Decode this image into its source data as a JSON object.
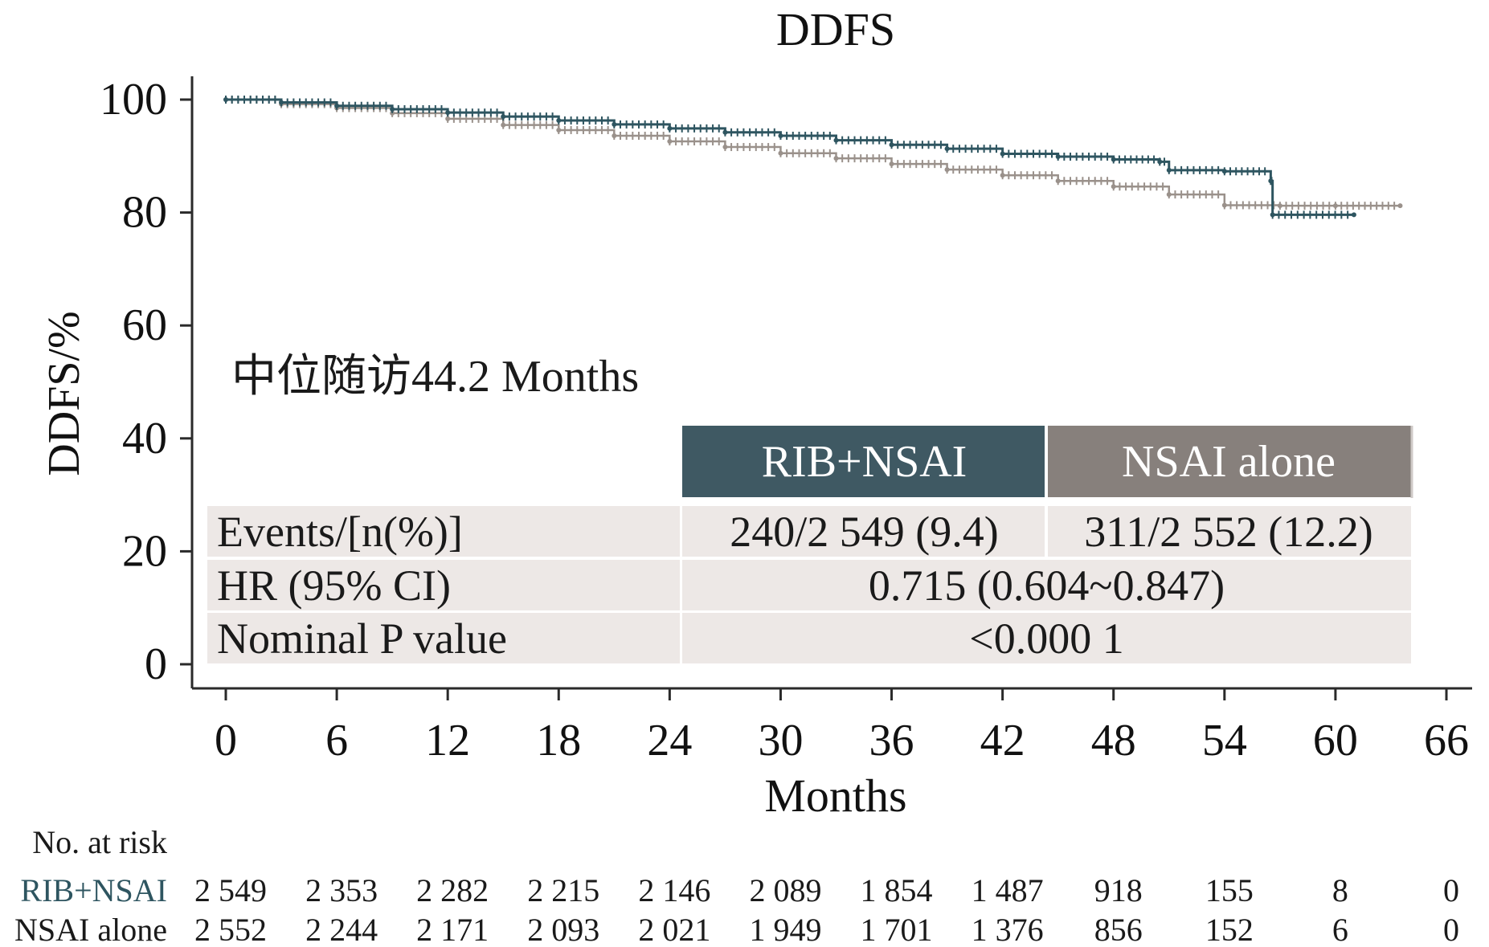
{
  "chart_data": {
    "type": "line",
    "title": "DDFS",
    "xlabel": "Months",
    "ylabel": "DDFS/%",
    "xlim": [
      0,
      66
    ],
    "ylim": [
      0,
      100
    ],
    "x_ticks": [
      "0",
      "6",
      "12",
      "18",
      "24",
      "30",
      "36",
      "42",
      "48",
      "54",
      "60",
      "66"
    ],
    "y_ticks": [
      "0",
      "20",
      "40",
      "60",
      "80",
      "100"
    ],
    "annotation": "中位随访44.2 Months",
    "colors": {
      "rib": "#2e5560",
      "nsai": "#9a918b",
      "header_rib": "#3f5963",
      "header_nsai": "#87807c",
      "table_bg": "#ede8e6"
    },
    "series": [
      {
        "name": "RIB+NSAI",
        "x": [
          0,
          3,
          6,
          9,
          12,
          15,
          18,
          21,
          24,
          27,
          30,
          33,
          36,
          39,
          42,
          45,
          48,
          50.5,
          51,
          54,
          56.5,
          56.6,
          61
        ],
        "y": [
          100,
          99.5,
          98.9,
          98.3,
          97.7,
          97.0,
          96.3,
          95.6,
          94.9,
          94.2,
          93.6,
          92.8,
          92.0,
          91.3,
          90.4,
          89.9,
          89.4,
          89.0,
          87.5,
          87.3,
          85.6,
          79.6,
          79.6
        ]
      },
      {
        "name": "NSAI alone",
        "x": [
          0,
          3,
          6,
          9,
          12,
          15,
          18,
          21,
          24,
          27,
          30,
          33,
          36,
          39,
          42,
          45,
          48,
          51,
          54,
          57,
          60,
          63.5
        ],
        "y": [
          100,
          99.2,
          98.5,
          97.6,
          96.6,
          95.5,
          94.6,
          93.6,
          92.6,
          91.6,
          90.5,
          89.6,
          88.6,
          87.6,
          86.6,
          85.6,
          84.6,
          83.2,
          81.3,
          81.2,
          81.2,
          81.2
        ]
      }
    ],
    "table": {
      "header": [
        "RIB+NSAI",
        "NSAI alone"
      ],
      "rows": [
        {
          "label": "Events/[n(%)]",
          "values": [
            "240/2 549 (9.4)",
            "311/2 552 (12.2)"
          ]
        },
        {
          "label": "HR (95% CI)",
          "values": [
            "0.715 (0.604~0.847)"
          ]
        },
        {
          "label": "Nominal P value",
          "values": [
            "<0.000 1"
          ]
        }
      ]
    },
    "risk_table": {
      "title": "No. at risk",
      "rows": [
        {
          "name": "RIB+NSAI",
          "values": [
            "2 549",
            "2 353",
            "2 282",
            "2 215",
            "2 146",
            "2 089",
            "1 854",
            "1 487",
            "918",
            "155",
            "8",
            "0"
          ]
        },
        {
          "name": "NSAI alone",
          "values": [
            "2 552",
            "2 244",
            "2 171",
            "2 093",
            "2 021",
            "1 949",
            "1 701",
            "1 376",
            "856",
            "152",
            "6",
            "0"
          ]
        }
      ]
    }
  }
}
